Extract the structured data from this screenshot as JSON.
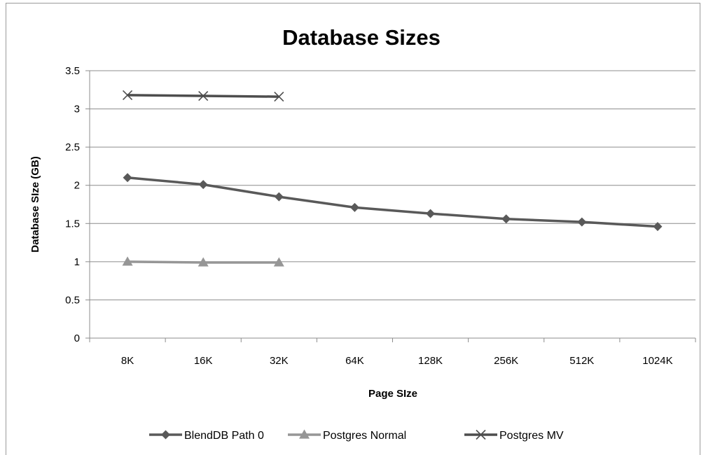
{
  "chart_data": {
    "type": "line",
    "title": "Database Sizes",
    "xlabel": "Page SIze",
    "ylabel": "Database SIze (GB)",
    "categories": [
      "8K",
      "16K",
      "32K",
      "64K",
      "128K",
      "256K",
      "512K",
      "1024K"
    ],
    "ylim": [
      0,
      3.5
    ],
    "yticks": [
      0,
      0.5,
      1,
      1.5,
      2,
      2.5,
      3,
      3.5
    ],
    "grid": true,
    "legend_position": "bottom",
    "series": [
      {
        "name": "BlendDB Path 0",
        "marker": "diamond",
        "color": "#595959",
        "values": [
          2.1,
          2.01,
          1.85,
          1.71,
          1.63,
          1.56,
          1.52,
          1.46
        ]
      },
      {
        "name": "Postgres Normal",
        "marker": "triangle",
        "color": "#969696",
        "values": [
          1.0,
          0.99,
          0.99,
          null,
          null,
          null,
          null,
          null
        ]
      },
      {
        "name": "Postgres MV",
        "marker": "x",
        "color": "#4d4d4d",
        "values": [
          3.18,
          3.17,
          3.16,
          null,
          null,
          null,
          null,
          null
        ]
      }
    ]
  }
}
